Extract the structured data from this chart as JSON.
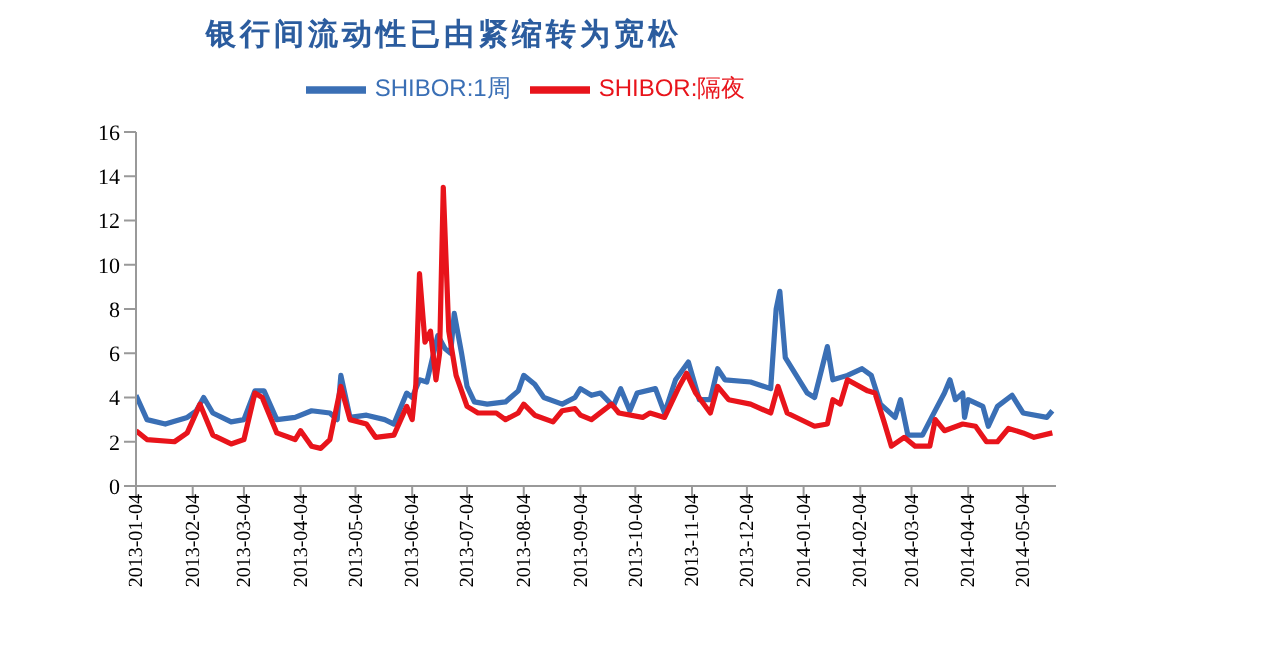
{
  "chart_data": {
    "type": "line",
    "title": "银行间流动性已由紧缩转为宽松",
    "xlim": [
      "2013-01-04",
      "2014-05-22"
    ],
    "xticks": [
      "2013-01-04",
      "2013-02-04",
      "2013-03-04",
      "2013-04-04",
      "2013-05-04",
      "2013-06-04",
      "2013-07-04",
      "2013-08-04",
      "2013-09-04",
      "2013-10-04",
      "2013-11-04",
      "2013-12-04",
      "2014-01-04",
      "2014-02-04",
      "2014-03-04",
      "2014-04-04",
      "2014-05-04"
    ],
    "ylim": [
      0,
      16
    ],
    "yticks": [
      0,
      2,
      4,
      6,
      8,
      10,
      12,
      14,
      16
    ],
    "grid": false,
    "legend": "top",
    "marker": "none",
    "line_style": "solid",
    "series": [
      {
        "name": "SHIBOR:1周",
        "color": "#3a6fb5",
        "x": [
          "2013-01-04",
          "2013-01-10",
          "2013-01-20",
          "2013-02-01",
          "2013-02-06",
          "2013-02-10",
          "2013-02-15",
          "2013-02-25",
          "2013-03-04",
          "2013-03-10",
          "2013-03-15",
          "2013-03-22",
          "2013-04-01",
          "2013-04-10",
          "2013-04-20",
          "2013-04-24",
          "2013-04-26",
          "2013-05-01",
          "2013-05-10",
          "2013-05-20",
          "2013-05-25",
          "2013-06-01",
          "2013-06-04",
          "2013-06-08",
          "2013-06-12",
          "2013-06-18",
          "2013-06-22",
          "2013-06-25",
          "2013-06-27",
          "2013-07-01",
          "2013-07-04",
          "2013-07-08",
          "2013-07-15",
          "2013-07-25",
          "2013-08-01",
          "2013-08-04",
          "2013-08-10",
          "2013-08-15",
          "2013-08-25",
          "2013-09-01",
          "2013-09-04",
          "2013-09-10",
          "2013-09-15",
          "2013-09-22",
          "2013-09-26",
          "2013-10-01",
          "2013-10-05",
          "2013-10-15",
          "2013-10-20",
          "2013-10-26",
          "2013-11-02",
          "2013-11-08",
          "2013-11-14",
          "2013-11-18",
          "2013-11-22",
          "2013-12-06",
          "2013-12-17",
          "2013-12-20",
          "2013-12-22",
          "2013-12-25",
          "2013-12-31",
          "2014-01-06",
          "2014-01-10",
          "2014-01-17",
          "2014-01-20",
          "2014-01-28",
          "2014-02-05",
          "2014-02-10",
          "2014-02-15",
          "2014-02-23",
          "2014-02-26",
          "2014-03-02",
          "2014-03-10",
          "2014-03-15",
          "2014-03-22",
          "2014-03-25",
          "2014-03-28",
          "2014-04-01",
          "2014-04-02",
          "2014-04-04",
          "2014-04-12",
          "2014-04-15",
          "2014-04-20",
          "2014-04-28",
          "2014-05-04",
          "2014-05-17",
          "2014-05-20"
        ],
        "values": [
          4.1,
          3.0,
          2.8,
          3.1,
          3.4,
          4.0,
          3.3,
          2.9,
          3.0,
          4.3,
          4.3,
          3.0,
          3.1,
          3.4,
          3.3,
          3.0,
          5.0,
          3.1,
          3.2,
          3.0,
          2.8,
          4.2,
          4.0,
          4.8,
          4.7,
          6.8,
          6.2,
          6.0,
          7.8,
          6.0,
          4.5,
          3.8,
          3.7,
          3.8,
          4.3,
          5.0,
          4.6,
          4.0,
          3.7,
          4.0,
          4.4,
          4.1,
          4.2,
          3.6,
          4.4,
          3.4,
          4.2,
          4.4,
          3.3,
          4.8,
          5.6,
          3.9,
          3.9,
          5.3,
          4.8,
          4.7,
          4.4,
          8.0,
          8.8,
          5.8,
          5.0,
          4.2,
          4.0,
          6.3,
          4.8,
          5.0,
          5.3,
          5.0,
          3.7,
          3.1,
          3.9,
          2.3,
          2.3,
          3.1,
          4.2,
          4.8,
          3.9,
          4.2,
          3.1,
          3.9,
          3.6,
          2.7,
          3.6,
          4.1,
          3.3,
          3.1,
          3.4
        ]
      },
      {
        "name": "SHIBOR:隔夜",
        "color": "#e8141b",
        "x": [
          "2013-01-04",
          "2013-01-10",
          "2013-01-25",
          "2013-02-01",
          "2013-02-08",
          "2013-02-15",
          "2013-02-25",
          "2013-03-04",
          "2013-03-10",
          "2013-03-14",
          "2013-03-22",
          "2013-04-01",
          "2013-04-04",
          "2013-04-10",
          "2013-04-15",
          "2013-04-20",
          "2013-04-26",
          "2013-05-01",
          "2013-05-10",
          "2013-05-15",
          "2013-05-25",
          "2013-06-01",
          "2013-06-04",
          "2013-06-06",
          "2013-06-08",
          "2013-06-11",
          "2013-06-14",
          "2013-06-17",
          "2013-06-19",
          "2013-06-21",
          "2013-06-24",
          "2013-06-28",
          "2013-07-04",
          "2013-07-10",
          "2013-07-20",
          "2013-07-25",
          "2013-08-01",
          "2013-08-04",
          "2013-08-10",
          "2013-08-20",
          "2013-08-25",
          "2013-09-01",
          "2013-09-04",
          "2013-09-10",
          "2013-09-21",
          "2013-09-25",
          "2013-10-08",
          "2013-10-12",
          "2013-10-20",
          "2013-10-28",
          "2013-11-01",
          "2013-11-06",
          "2013-11-14",
          "2013-11-18",
          "2013-11-24",
          "2013-12-06",
          "2013-12-17",
          "2013-12-21",
          "2013-12-26",
          "2014-01-10",
          "2014-01-17",
          "2014-01-20",
          "2014-01-24",
          "2014-01-28",
          "2014-02-08",
          "2014-02-12",
          "2014-02-17",
          "2014-02-21",
          "2014-02-28",
          "2014-03-06",
          "2014-03-14",
          "2014-03-17",
          "2014-03-22",
          "2014-04-01",
          "2014-04-08",
          "2014-04-14",
          "2014-04-20",
          "2014-04-26",
          "2014-05-04",
          "2014-05-10",
          "2014-05-20"
        ],
        "values": [
          2.5,
          2.1,
          2.0,
          2.4,
          3.7,
          2.3,
          1.9,
          2.1,
          4.2,
          4.0,
          2.4,
          2.1,
          2.5,
          1.8,
          1.7,
          2.1,
          4.5,
          3.0,
          2.8,
          2.2,
          2.3,
          3.6,
          3.0,
          4.6,
          9.6,
          6.5,
          7.0,
          4.8,
          6.0,
          13.5,
          7.0,
          5.0,
          3.6,
          3.3,
          3.3,
          3.0,
          3.3,
          3.7,
          3.2,
          2.9,
          3.4,
          3.5,
          3.2,
          3.0,
          3.7,
          3.3,
          3.1,
          3.3,
          3.1,
          4.5,
          5.1,
          4.2,
          3.3,
          4.5,
          3.9,
          3.7,
          3.3,
          4.5,
          3.3,
          2.7,
          2.8,
          3.9,
          3.7,
          4.8,
          4.3,
          4.2,
          2.9,
          1.8,
          2.2,
          1.8,
          1.8,
          3.0,
          2.5,
          2.8,
          2.7,
          2.0,
          2.0,
          2.6,
          2.4,
          2.2,
          2.4
        ]
      }
    ]
  }
}
